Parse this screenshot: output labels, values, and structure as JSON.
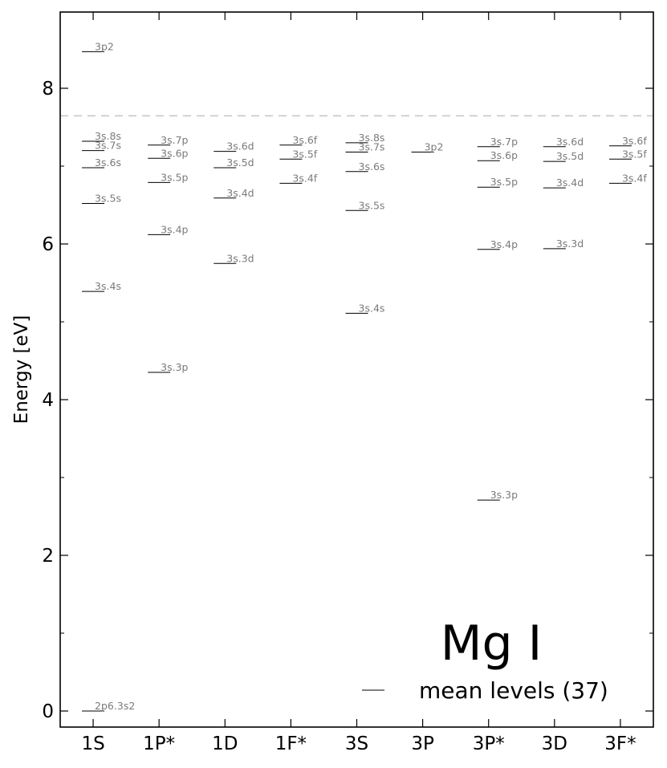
{
  "chart_data": {
    "type": "scatter",
    "title": "Mg I",
    "xlabel": "",
    "ylabel": "Energy [eV]",
    "ylim": [
      -0.2,
      9.0
    ],
    "y_ticks": [
      "0",
      "2",
      "4",
      "6",
      "8"
    ],
    "categories": [
      "1S",
      "1P*",
      "1D",
      "1F*",
      "3S",
      "3P",
      "3P*",
      "3D",
      "3F*"
    ],
    "ionization_limit": 7.646,
    "legend": {
      "label": "mean levels (37)",
      "placement": "lower-right"
    },
    "grid": false,
    "series": [
      {
        "category": "1S",
        "levels": [
          {
            "label": "2p6.3s2",
            "energy": 0.0
          },
          {
            "label": "3s.4s",
            "energy": 5.39
          },
          {
            "label": "3s.5s",
            "energy": 6.52
          },
          {
            "label": "3s.6s",
            "energy": 6.98
          },
          {
            "label": "3s.7s",
            "energy": 7.2
          },
          {
            "label": "3s.8s",
            "energy": 7.32
          },
          {
            "label": "3p2",
            "energy": 8.47
          }
        ]
      },
      {
        "category": "1P*",
        "levels": [
          {
            "label": "3s.3p",
            "energy": 4.35
          },
          {
            "label": "3s.4p",
            "energy": 6.12
          },
          {
            "label": "3s.5p",
            "energy": 6.79
          },
          {
            "label": "3s.6p",
            "energy": 7.1
          },
          {
            "label": "3s.7p",
            "energy": 7.27
          }
        ]
      },
      {
        "category": "1D",
        "levels": [
          {
            "label": "3s.3d",
            "energy": 5.75
          },
          {
            "label": "3s.4d",
            "energy": 6.59
          },
          {
            "label": "3s.5d",
            "energy": 6.98
          },
          {
            "label": "3s.6d",
            "energy": 7.19
          }
        ]
      },
      {
        "category": "1F*",
        "levels": [
          {
            "label": "3s.4f",
            "energy": 6.78
          },
          {
            "label": "3s.5f",
            "energy": 7.09
          },
          {
            "label": "3s.6f",
            "energy": 7.27
          }
        ]
      },
      {
        "category": "3S",
        "levels": [
          {
            "label": "3s.4s",
            "energy": 5.11
          },
          {
            "label": "3s.5s",
            "energy": 6.43
          },
          {
            "label": "3s.6s",
            "energy": 6.93
          },
          {
            "label": "3s.7s",
            "energy": 7.18
          },
          {
            "label": "3s.8s",
            "energy": 7.3
          }
        ]
      },
      {
        "category": "3P",
        "levels": [
          {
            "label": "3p2",
            "energy": 7.18
          }
        ]
      },
      {
        "category": "3P*",
        "levels": [
          {
            "label": "3s.3p",
            "energy": 2.71
          },
          {
            "label": "3s.4p",
            "energy": 5.93
          },
          {
            "label": "3s.5p",
            "energy": 6.73
          },
          {
            "label": "3s.6p",
            "energy": 7.07
          },
          {
            "label": "3s.7p",
            "energy": 7.25
          }
        ]
      },
      {
        "category": "3D",
        "levels": [
          {
            "label": "3s.3d",
            "energy": 5.94
          },
          {
            "label": "3s.4d",
            "energy": 6.72
          },
          {
            "label": "3s.5d",
            "energy": 7.06
          },
          {
            "label": "3s.6d",
            "energy": 7.25
          }
        ]
      },
      {
        "category": "3F*",
        "levels": [
          {
            "label": "3s.4f",
            "energy": 6.78
          },
          {
            "label": "3s.5f",
            "energy": 7.09
          },
          {
            "label": "3s.6f",
            "energy": 7.26
          }
        ]
      }
    ]
  }
}
